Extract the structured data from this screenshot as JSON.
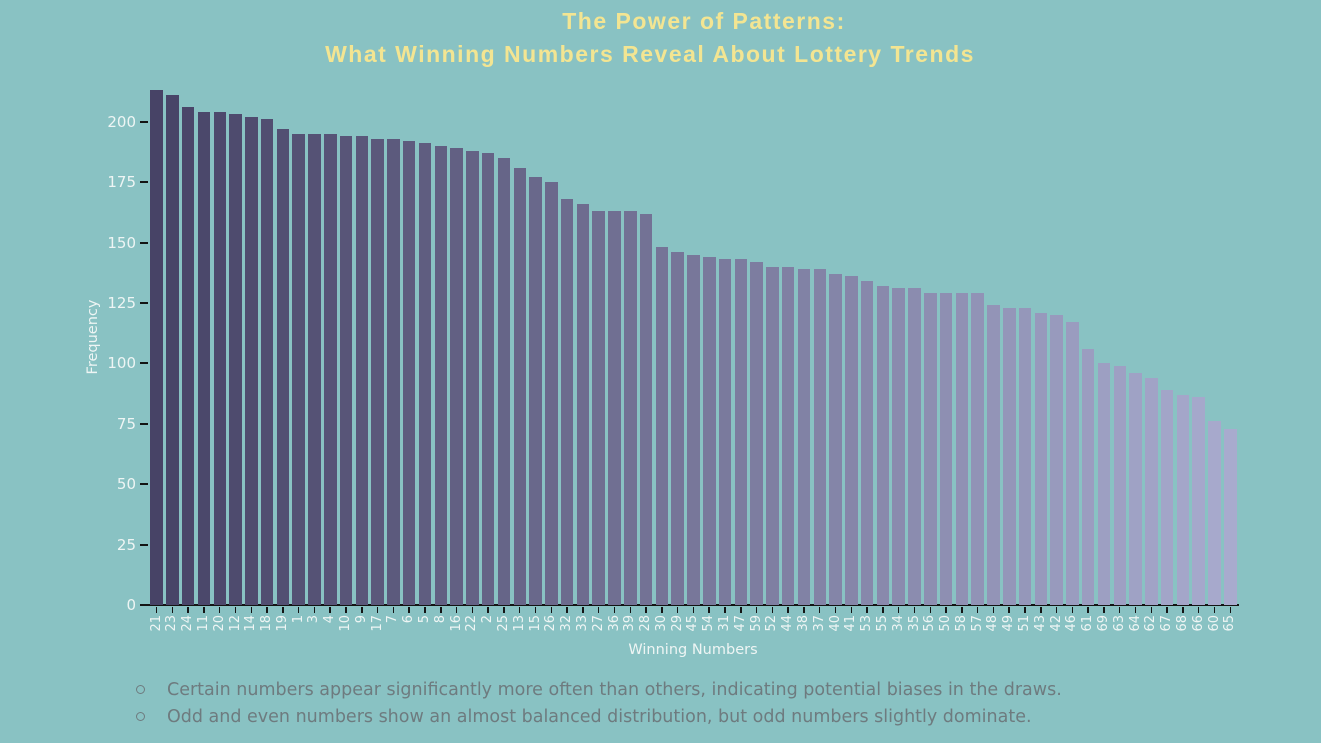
{
  "title": {
    "line1": "The Power of Patterns:",
    "line2": "What Winning Numbers Reveal About Lottery Trends",
    "color": "#f3e592"
  },
  "chart_data": {
    "type": "bar",
    "title": "The Power of Patterns: What Winning Numbers Reveal About Lottery Trends",
    "xlabel": "Winning Numbers",
    "ylabel": "Frequency",
    "categories": [
      "21",
      "23",
      "24",
      "11",
      "20",
      "12",
      "14",
      "18",
      "19",
      "1",
      "3",
      "4",
      "10",
      "9",
      "17",
      "7",
      "6",
      "5",
      "8",
      "16",
      "22",
      "2",
      "25",
      "13",
      "15",
      "26",
      "32",
      "33",
      "27",
      "36",
      "39",
      "28",
      "30",
      "29",
      "45",
      "54",
      "31",
      "47",
      "59",
      "52",
      "44",
      "38",
      "37",
      "40",
      "41",
      "53",
      "55",
      "34",
      "35",
      "56",
      "50",
      "58",
      "57",
      "48",
      "49",
      "51",
      "43",
      "42",
      "46",
      "61",
      "69",
      "63",
      "64",
      "62",
      "67",
      "68",
      "66",
      "60",
      "65"
    ],
    "values": [
      213,
      211,
      206,
      204,
      204,
      203,
      202,
      201,
      197,
      195,
      195,
      195,
      194,
      194,
      193,
      193,
      192,
      191,
      190,
      189,
      188,
      187,
      185,
      181,
      177,
      175,
      168,
      166,
      163,
      163,
      163,
      162,
      148,
      146,
      145,
      144,
      143,
      143,
      142,
      140,
      140,
      139,
      139,
      137,
      136,
      134,
      132,
      131,
      131,
      129,
      129,
      129,
      129,
      124,
      123,
      123,
      121,
      120,
      117,
      106,
      100,
      99,
      96,
      94,
      89,
      87,
      86,
      76,
      73
    ],
    "yticks": [
      0,
      25,
      50,
      75,
      100,
      125,
      150,
      175,
      200
    ],
    "ylim": [
      0,
      215
    ],
    "grid": false,
    "legend": null,
    "background": "#89c2c3",
    "bar_color_start": "#474366",
    "bar_color_end": "#a8abce",
    "axis_text_color": "#eef5f4",
    "axis_line_color": "#141414"
  },
  "notes": {
    "items": [
      "Certain numbers appear significantly more often than others, indicating potential biases in the draws.",
      "Odd and even numbers show an almost balanced distribution, but odd numbers slightly dominate."
    ],
    "text_color": "#6e7b7f"
  }
}
